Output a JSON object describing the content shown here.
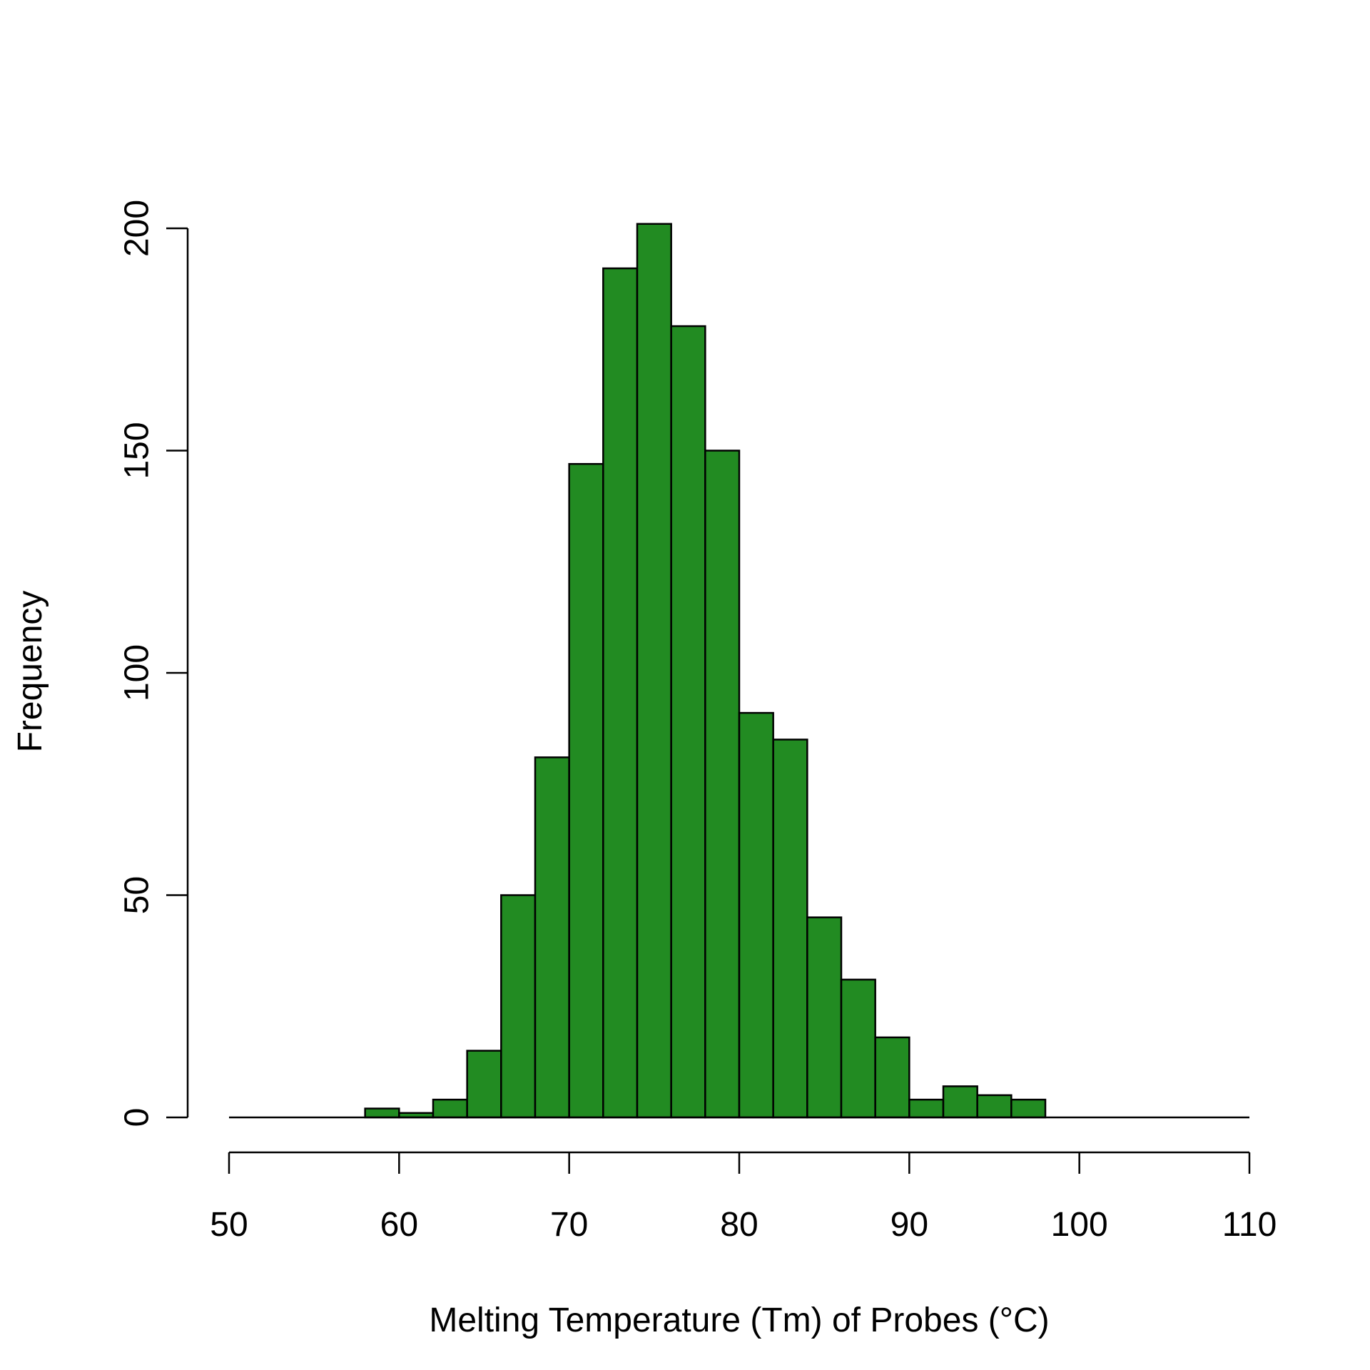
{
  "chart_data": {
    "type": "bar",
    "title": "",
    "xlabel": "Melting Temperature (Tm) of Probes (°C)",
    "ylabel": "Frequency",
    "bar_color": "#228B22",
    "edge_color": "#000000",
    "bin_width": 2,
    "bins": [
      {
        "start": 50,
        "end": 52,
        "count": 0
      },
      {
        "start": 52,
        "end": 54,
        "count": 0
      },
      {
        "start": 54,
        "end": 56,
        "count": 0
      },
      {
        "start": 56,
        "end": 58,
        "count": 0
      },
      {
        "start": 58,
        "end": 60,
        "count": 2
      },
      {
        "start": 60,
        "end": 62,
        "count": 1
      },
      {
        "start": 62,
        "end": 64,
        "count": 4
      },
      {
        "start": 64,
        "end": 66,
        "count": 15
      },
      {
        "start": 66,
        "end": 68,
        "count": 50
      },
      {
        "start": 68,
        "end": 70,
        "count": 81
      },
      {
        "start": 70,
        "end": 72,
        "count": 147
      },
      {
        "start": 72,
        "end": 74,
        "count": 191
      },
      {
        "start": 74,
        "end": 76,
        "count": 201
      },
      {
        "start": 76,
        "end": 78,
        "count": 178
      },
      {
        "start": 78,
        "end": 80,
        "count": 150
      },
      {
        "start": 80,
        "end": 82,
        "count": 91
      },
      {
        "start": 82,
        "end": 84,
        "count": 85
      },
      {
        "start": 84,
        "end": 86,
        "count": 45
      },
      {
        "start": 86,
        "end": 88,
        "count": 31
      },
      {
        "start": 88,
        "end": 90,
        "count": 18
      },
      {
        "start": 90,
        "end": 92,
        "count": 4
      },
      {
        "start": 92,
        "end": 94,
        "count": 7
      },
      {
        "start": 94,
        "end": 96,
        "count": 5
      },
      {
        "start": 96,
        "end": 98,
        "count": 4
      },
      {
        "start": 98,
        "end": 100,
        "count": 0
      },
      {
        "start": 100,
        "end": 102,
        "count": 0
      },
      {
        "start": 102,
        "end": 104,
        "count": 0
      },
      {
        "start": 104,
        "end": 106,
        "count": 0
      },
      {
        "start": 106,
        "end": 108,
        "count": 0
      },
      {
        "start": 108,
        "end": 110,
        "count": 0
      }
    ],
    "xlim": [
      50,
      110
    ],
    "ylim": [
      0,
      200
    ],
    "x_ticks": [
      50,
      60,
      70,
      80,
      90,
      100,
      110
    ],
    "x_tick_labels": [
      "50",
      "60",
      "70",
      "80",
      "90",
      "100",
      "110"
    ],
    "y_ticks": [
      0,
      50,
      100,
      150,
      200
    ],
    "y_tick_labels": [
      "0",
      "50",
      "100",
      "150",
      "200"
    ],
    "grid": false,
    "legend": "none"
  }
}
